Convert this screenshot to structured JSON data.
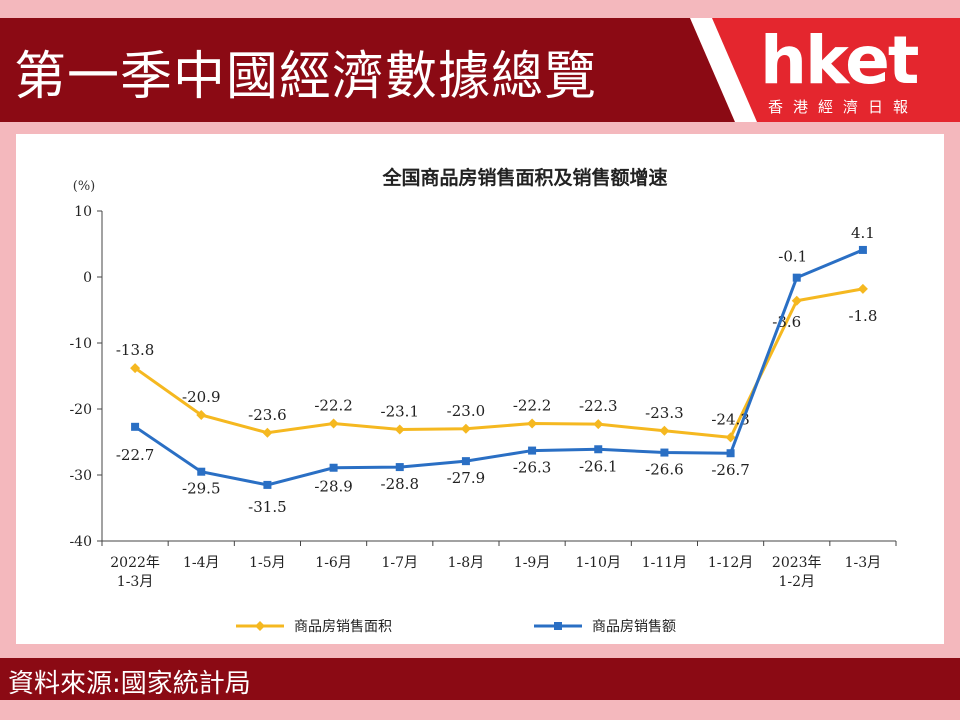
{
  "header": {
    "title": "第一季中國經濟數據總覽",
    "logo_main": "hket",
    "logo_sub": "香港經濟日報"
  },
  "footer": {
    "source": "資料來源:國家統計局"
  },
  "colors": {
    "brand_red": "#8b0a14",
    "background_pink": "#f4b8bd",
    "series_area": "#f5b820",
    "series_sales": "#2a6fc4"
  },
  "chart_data": {
    "type": "line",
    "title": "全国商品房销售面积及销售额增速",
    "ylabel": "(%)",
    "ylim": [
      -40,
      10
    ],
    "yticks": [
      10,
      0,
      -10,
      -20,
      -30,
      -40
    ],
    "categories": [
      [
        "2022年",
        "1-3月"
      ],
      [
        "1-4月"
      ],
      [
        "1-5月"
      ],
      [
        "1-6月"
      ],
      [
        "1-7月"
      ],
      [
        "1-8月"
      ],
      [
        "1-9月"
      ],
      [
        "1-10月"
      ],
      [
        "1-11月"
      ],
      [
        "1-12月"
      ],
      [
        "2023年",
        "1-2月"
      ],
      [
        "1-3月"
      ]
    ],
    "series": [
      {
        "name": "商品房销售面积",
        "color": "#f5b820",
        "marker": "diamond",
        "values": [
          -13.8,
          -20.9,
          -23.6,
          -22.2,
          -23.1,
          -23.0,
          -22.2,
          -22.3,
          -23.3,
          -24.3,
          -3.6,
          -1.8
        ]
      },
      {
        "name": "商品房销售额",
        "color": "#2a6fc4",
        "marker": "square",
        "values": [
          -22.7,
          -29.5,
          -31.5,
          -28.9,
          -28.8,
          -27.9,
          -26.3,
          -26.1,
          -26.6,
          -26.7,
          -0.1,
          4.1
        ]
      }
    ],
    "legend_position": "bottom"
  }
}
